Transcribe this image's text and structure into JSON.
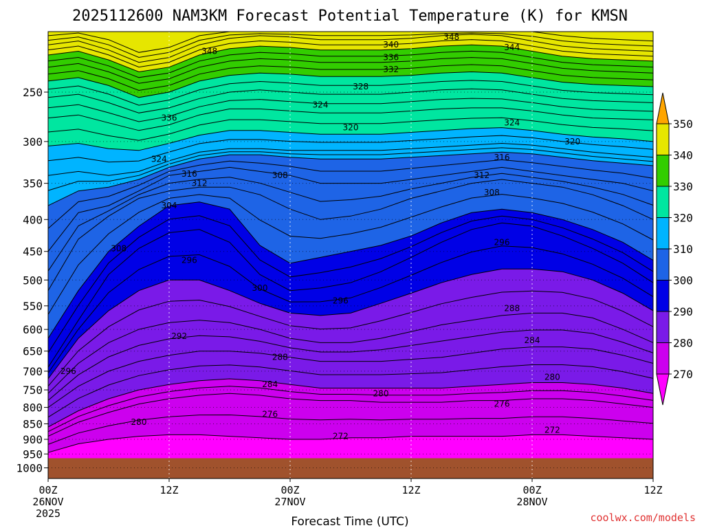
{
  "title": "2025112600 NAM3KM Forecast Potential Temperature (K) for KMSN",
  "credit": "coolwx.com/models",
  "chart_data": {
    "type": "contour",
    "title": "2025112600 NAM3KM Forecast Potential Temperature (K) for KMSN",
    "xlabel": "Forecast Time (UTC)",
    "ylabel": "",
    "x_ticks": [
      {
        "label": "00Z",
        "sub": "26NOV",
        "sub2": "2025",
        "hour": 0
      },
      {
        "label": "12Z",
        "sub": "",
        "sub2": "",
        "hour": 12
      },
      {
        "label": "00Z",
        "sub": "27NOV",
        "sub2": "",
        "hour": 24
      },
      {
        "label": "12Z",
        "sub": "",
        "sub2": "",
        "hour": 36
      },
      {
        "label": "00Z",
        "sub": "28NOV",
        "sub2": "",
        "hour": 48
      },
      {
        "label": "12Z",
        "sub": "",
        "sub2": "",
        "hour": 60
      }
    ],
    "xlim": [
      0,
      60
    ],
    "y_scale": "log",
    "y_ticks": [
      250,
      300,
      350,
      400,
      450,
      500,
      550,
      600,
      650,
      700,
      750,
      800,
      850,
      900,
      950,
      1000
    ],
    "ylim": [
      1040,
      200
    ],
    "hours": [
      0,
      3,
      6,
      9,
      12,
      15,
      18,
      21,
      24,
      27,
      30,
      33,
      36,
      39,
      42,
      45,
      48,
      51,
      54,
      57,
      60
    ],
    "surface_pressure": 965,
    "contour_interval": 2,
    "fill_levels": [
      270,
      280,
      290,
      300,
      310,
      320,
      330,
      340,
      350
    ],
    "fill_colors": [
      "#ff00ff",
      "#cc00ee",
      "#7a1ae8",
      "#0000e6",
      "#1e64e6",
      "#00b4ff",
      "#00e6a0",
      "#32cd00",
      "#e6e600",
      "#ffa500"
    ],
    "colorbar_labels": [
      "270",
      "280",
      "290",
      "300",
      "310",
      "320",
      "330",
      "340",
      "350"
    ],
    "series": [
      {
        "level": 272,
        "p": [
          945,
          915,
          900,
          890,
          885,
          885,
          890,
          895,
          900,
          900,
          895,
          895,
          890,
          890,
          890,
          890,
          885,
          885,
          890,
          895,
          900
        ]
      },
      {
        "level": 276,
        "p": [
          890,
          845,
          815,
          790,
          775,
          765,
          760,
          765,
          775,
          780,
          780,
          785,
          785,
          785,
          780,
          780,
          775,
          775,
          780,
          790,
          800
        ]
      },
      {
        "level": 280,
        "p": [
          860,
          810,
          775,
          750,
          735,
          725,
          720,
          725,
          735,
          745,
          745,
          745,
          745,
          745,
          740,
          735,
          730,
          730,
          735,
          745,
          760
        ]
      },
      {
        "level": 284,
        "p": [
          800,
          740,
          700,
          675,
          660,
          650,
          650,
          655,
          665,
          675,
          675,
          675,
          670,
          665,
          655,
          645,
          640,
          640,
          645,
          660,
          680
        ]
      },
      {
        "level": 288,
        "p": [
          760,
          680,
          630,
          600,
          585,
          580,
          585,
          600,
          620,
          630,
          630,
          620,
          605,
          590,
          580,
          570,
          565,
          565,
          575,
          600,
          630
        ]
      },
      {
        "level": 292,
        "p": [
          720,
          620,
          560,
          520,
          500,
          500,
          520,
          545,
          565,
          570,
          565,
          545,
          525,
          505,
          490,
          480,
          480,
          485,
          500,
          525,
          560
        ]
      },
      {
        "level": 296,
        "p": [
          690,
          580,
          490,
          445,
          420,
          415,
          435,
          490,
          520,
          515,
          505,
          485,
          460,
          435,
          415,
          405,
          410,
          425,
          445,
          470,
          505
        ]
      },
      {
        "level": 300,
        "p": [
          620,
          520,
          450,
          410,
          380,
          375,
          385,
          440,
          470,
          460,
          450,
          440,
          425,
          405,
          390,
          385,
          390,
          400,
          415,
          435,
          465
        ]
      },
      {
        "level": 304,
        "p": [
          520,
          430,
          395,
          370,
          360,
          355,
          355,
          365,
          385,
          400,
          395,
          385,
          370,
          360,
          350,
          345,
          350,
          355,
          365,
          380,
          400
        ]
      },
      {
        "level": 308,
        "p": [
          450,
          390,
          380,
          360,
          340,
          335,
          330,
          335,
          340,
          350,
          350,
          350,
          345,
          340,
          335,
          330,
          335,
          340,
          345,
          350,
          360
        ]
      },
      {
        "level": 312,
        "p": [
          380,
          360,
          355,
          345,
          330,
          320,
          315,
          315,
          318,
          320,
          320,
          320,
          318,
          316,
          314,
          312,
          314,
          318,
          322,
          325,
          328
        ]
      },
      {
        "level": 316,
        "p": [
          340,
          335,
          340,
          335,
          322,
          312,
          308,
          308,
          310,
          310,
          310,
          310,
          308,
          306,
          304,
          302,
          304,
          308,
          312,
          315,
          318
        ]
      },
      {
        "level": 320,
        "p": [
          305,
          302,
          308,
          310,
          302,
          293,
          288,
          288,
          290,
          292,
          292,
          292,
          290,
          288,
          286,
          285,
          288,
          292,
          295,
          297,
          300
        ]
      },
      {
        "level": 324,
        "p": [
          275,
          272,
          280,
          288,
          282,
          272,
          266,
          266,
          268,
          270,
          270,
          270,
          268,
          266,
          265,
          265,
          268,
          272,
          275,
          276,
          277
        ]
      },
      {
        "level": 328,
        "p": [
          255,
          252,
          260,
          270,
          265,
          256,
          250,
          248,
          250,
          252,
          252,
          252,
          250,
          248,
          247,
          248,
          252,
          256,
          258,
          259,
          260
        ]
      },
      {
        "level": 332,
        "p": [
          240,
          237,
          244,
          255,
          250,
          240,
          235,
          233,
          234,
          236,
          236,
          236,
          235,
          233,
          232,
          233,
          237,
          241,
          243,
          244,
          245
        ]
      },
      {
        "level": 336,
        "p": [
          228,
          225,
          232,
          242,
          238,
          228,
          223,
          221,
          222,
          224,
          224,
          224,
          223,
          221,
          220,
          221,
          225,
          229,
          231,
          232,
          233
        ]
      },
      {
        "level": 340,
        "p": [
          218,
          215,
          222,
          232,
          228,
          218,
          213,
          211,
          212,
          214,
          214,
          214,
          213,
          211,
          210,
          211,
          215,
          219,
          221,
          222,
          223
        ]
      },
      {
        "level": 344,
        "p": [
          210,
          207,
          214,
          224,
          220,
          210,
          205,
          203,
          204,
          206,
          206,
          206,
          205,
          203,
          202,
          203,
          207,
          211,
          213,
          214,
          215
        ]
      },
      {
        "level": 348,
        "p": [
          203,
          201,
          206,
          216,
          212,
          203,
          200,
          200,
          200,
          200,
          200,
          200,
          200,
          200,
          200,
          200,
          200,
          203,
          205,
          206,
          207
        ]
      }
    ],
    "contour_labels": [
      {
        "text": "348",
        "hour": 16,
        "p": 215
      },
      {
        "text": "348",
        "hour": 40,
        "p": 204
      },
      {
        "text": "344",
        "hour": 46,
        "p": 212
      },
      {
        "text": "340",
        "hour": 34,
        "p": 210
      },
      {
        "text": "336",
        "hour": 34,
        "p": 220
      },
      {
        "text": "332",
        "hour": 34,
        "p": 230
      },
      {
        "text": "328",
        "hour": 31,
        "p": 245
      },
      {
        "text": "324",
        "hour": 27,
        "p": 262
      },
      {
        "text": "336",
        "hour": 12,
        "p": 275
      },
      {
        "text": "320",
        "hour": 30,
        "p": 285
      },
      {
        "text": "324",
        "hour": 46,
        "p": 280
      },
      {
        "text": "320",
        "hour": 52,
        "p": 300
      },
      {
        "text": "324",
        "hour": 11,
        "p": 320
      },
      {
        "text": "316",
        "hour": 45,
        "p": 318
      },
      {
        "text": "316",
        "hour": 14,
        "p": 338
      },
      {
        "text": "312",
        "hour": 15,
        "p": 350
      },
      {
        "text": "308",
        "hour": 23,
        "p": 340
      },
      {
        "text": "312",
        "hour": 43,
        "p": 340
      },
      {
        "text": "308",
        "hour": 44,
        "p": 362
      },
      {
        "text": "304",
        "hour": 12,
        "p": 380
      },
      {
        "text": "308",
        "hour": 7,
        "p": 445
      },
      {
        "text": "296",
        "hour": 14,
        "p": 465
      },
      {
        "text": "296",
        "hour": 45,
        "p": 435
      },
      {
        "text": "300",
        "hour": 21,
        "p": 515
      },
      {
        "text": "296",
        "hour": 29,
        "p": 540
      },
      {
        "text": "288",
        "hour": 46,
        "p": 555
      },
      {
        "text": "292",
        "hour": 13,
        "p": 615
      },
      {
        "text": "284",
        "hour": 48,
        "p": 625
      },
      {
        "text": "288",
        "hour": 23,
        "p": 665
      },
      {
        "text": "296",
        "hour": 2,
        "p": 700
      },
      {
        "text": "284",
        "hour": 22,
        "p": 735
      },
      {
        "text": "280",
        "hour": 50,
        "p": 715
      },
      {
        "text": "280",
        "hour": 33,
        "p": 760
      },
      {
        "text": "276",
        "hour": 22,
        "p": 820
      },
      {
        "text": "276",
        "hour": 45,
        "p": 790
      },
      {
        "text": "280",
        "hour": 9,
        "p": 845
      },
      {
        "text": "272",
        "hour": 29,
        "p": 890
      },
      {
        "text": "272",
        "hour": 50,
        "p": 870
      }
    ]
  }
}
